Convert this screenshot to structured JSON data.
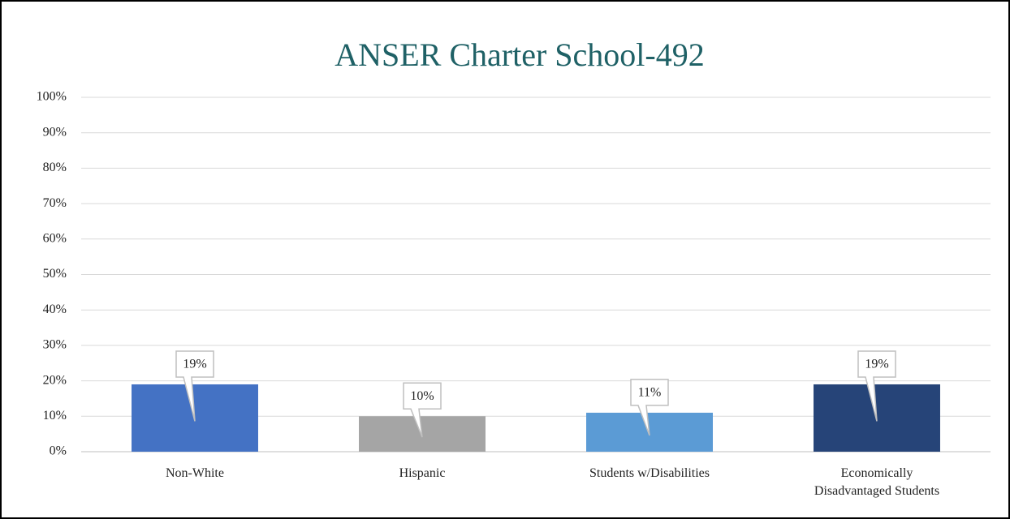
{
  "chart_data": {
    "type": "bar",
    "title": "ANSER Charter School-492",
    "categories": [
      "Non-White",
      "Hispanic",
      "Students w/Disabilities",
      "Economically Disadvantaged Students"
    ],
    "values": [
      19,
      10,
      11,
      19
    ],
    "value_labels": [
      "19%",
      "10%",
      "11%",
      "19%"
    ],
    "colors": [
      "#4472c4",
      "#a5a5a5",
      "#5b9bd5",
      "#264478"
    ],
    "ylim": [
      0,
      100
    ],
    "yticks": [
      {
        "value": 0,
        "label": "0%"
      },
      {
        "value": 10,
        "label": "10%"
      },
      {
        "value": 20,
        "label": "20%"
      },
      {
        "value": 30,
        "label": "30%"
      },
      {
        "value": 40,
        "label": "40%"
      },
      {
        "value": 50,
        "label": "50%"
      },
      {
        "value": 60,
        "label": "60%"
      },
      {
        "value": 70,
        "label": "70%"
      },
      {
        "value": 80,
        "label": "80%"
      },
      {
        "value": 90,
        "label": "90%"
      },
      {
        "value": 100,
        "label": "100%"
      }
    ],
    "grid": true
  }
}
